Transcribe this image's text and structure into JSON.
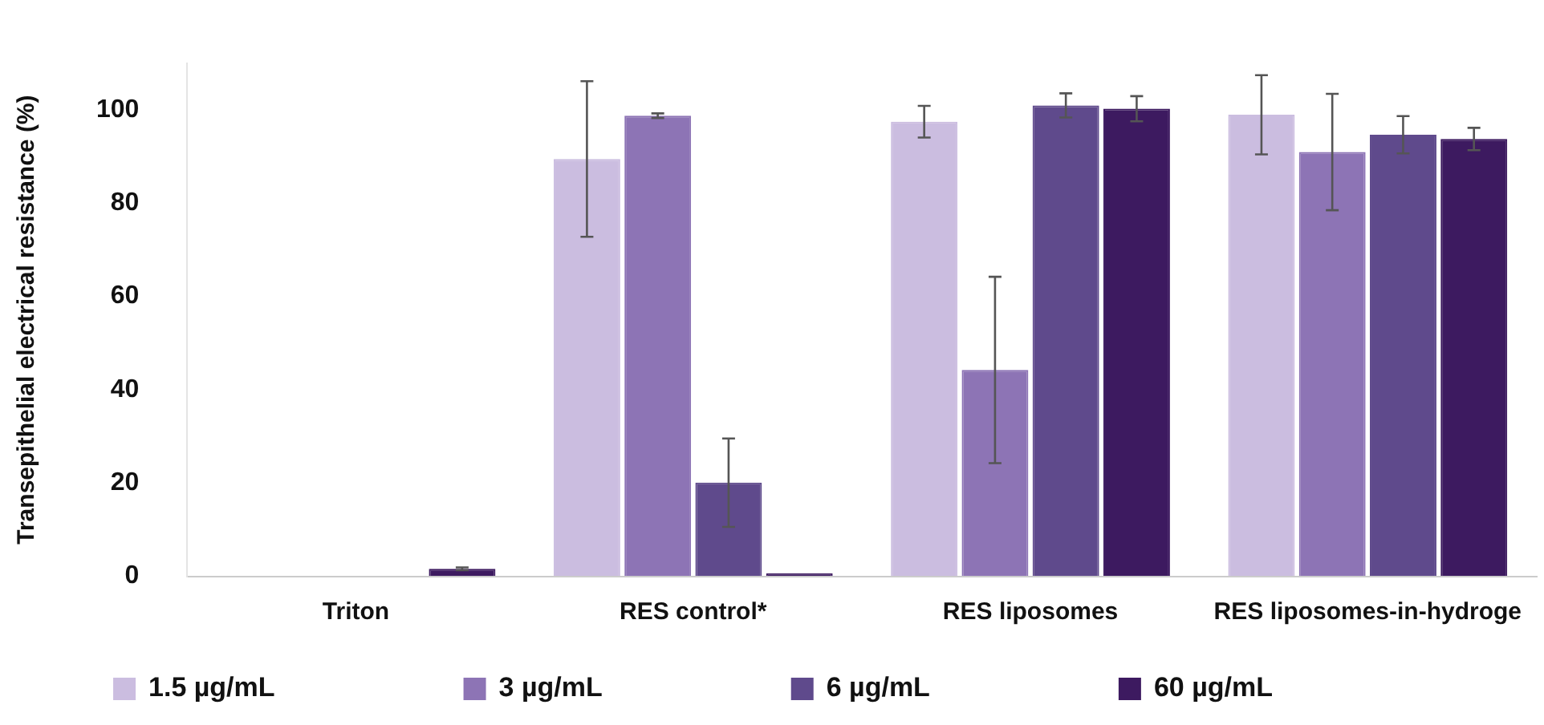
{
  "chart_data": {
    "type": "bar",
    "ylabel": "Transepithelial electrical resistance (%)",
    "categories": [
      "Triton",
      "RES control*",
      "RES liposomes",
      "RES liposomes-in-hydroge"
    ],
    "series": [
      {
        "name": "1.5 µg/mL",
        "color": "#cbbde0",
        "values": [
          null,
          89.5,
          97.5,
          99
        ],
        "errors": [
          null,
          16.7,
          3.4,
          8.5
        ]
      },
      {
        "name": "3 µg/mL",
        "color": "#8d74b5",
        "values": [
          null,
          98.8,
          44.2,
          91
        ],
        "errors": [
          null,
          0.5,
          20,
          12.5
        ]
      },
      {
        "name": "6 µg/mL",
        "color": "#5f4a8c",
        "values": [
          null,
          20,
          101,
          94.7
        ],
        "errors": [
          null,
          9.5,
          2.6,
          4
        ]
      },
      {
        "name": "60 µg/mL",
        "color": "#3d1a60",
        "values": [
          1.5,
          0.5,
          100.3,
          93.8
        ],
        "errors": [
          0.3,
          null,
          2.7,
          2.4
        ]
      }
    ],
    "ylim": [
      0,
      110
    ],
    "yticks": [
      0,
      20,
      40,
      60,
      80,
      100
    ],
    "grid": false,
    "legend": "bottom"
  }
}
